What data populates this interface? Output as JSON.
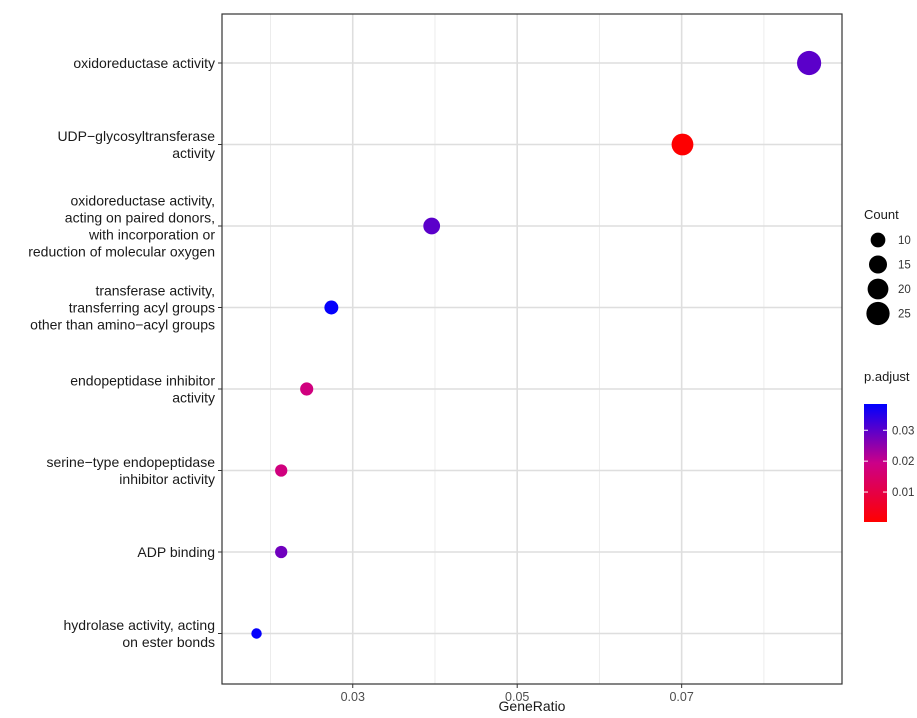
{
  "chart_data": {
    "type": "scatter",
    "xlabel": "GeneRatio",
    "x_ticks": [
      "0.03",
      "0.05",
      "0.07"
    ],
    "xlim": [
      0.0141,
      0.0895
    ],
    "grid": true,
    "legend_position": "right",
    "terms": [
      {
        "label": "oxidoreductase activity",
        "generatio": 0.0855,
        "count": 27,
        "p_adjust": 0.03
      },
      {
        "label": "UDP−glycosyltransferase\nactivity",
        "generatio": 0.0701,
        "count": 22,
        "p_adjust": 0.0005
      },
      {
        "label": "oxidoreductase activity,\nacting on paired donors,\nwith incorporation or\nreduction of molecular oxygen",
        "generatio": 0.0396,
        "count": 13,
        "p_adjust": 0.03
      },
      {
        "label": "transferase activity,\ntransferring acyl groups\nother than amino−acyl groups",
        "generatio": 0.0274,
        "count": 9,
        "p_adjust": 0.038
      },
      {
        "label": "endopeptidase inhibitor\nactivity",
        "generatio": 0.0244,
        "count": 8,
        "p_adjust": 0.018
      },
      {
        "label": "serine−type endopeptidase\ninhibitor activity",
        "generatio": 0.0213,
        "count": 7,
        "p_adjust": 0.018
      },
      {
        "label": "ADP binding",
        "generatio": 0.0213,
        "count": 7,
        "p_adjust": 0.028
      },
      {
        "label": "hydrolase activity, acting\non ester bonds",
        "generatio": 0.0183,
        "count": 5,
        "p_adjust": 0.038
      }
    ],
    "size_legend": {
      "title": "Count",
      "values": [
        10,
        15,
        20,
        25
      ]
    },
    "color_legend": {
      "title": "p.adjust",
      "ticks": [
        "0.03",
        "0.02",
        "0.01"
      ],
      "tick_values": [
        0.03,
        0.02,
        0.01
      ],
      "range": [
        0.0003,
        0.0385
      ],
      "low_color": "#ff0000",
      "high_color": "#0000ff"
    }
  }
}
